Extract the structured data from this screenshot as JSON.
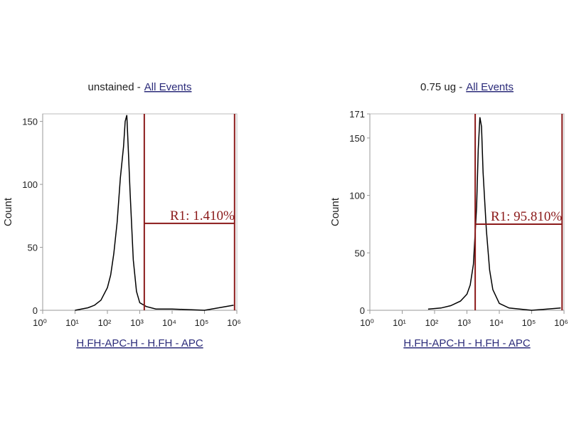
{
  "chart_data": [
    {
      "type": "line",
      "title": "unstained -",
      "title_link": "All Events",
      "xlabel": "H.FH-APC-H - H.FH - APC",
      "ylabel": "Count",
      "xscale": "log",
      "xlim": [
        1,
        1000000
      ],
      "ylim": [
        0,
        156
      ],
      "xticks": [
        {
          "value": 1,
          "label": "10⁰"
        },
        {
          "value": 10,
          "label": "10¹"
        },
        {
          "value": 100,
          "label": "10²"
        },
        {
          "value": 1000,
          "label": "10³"
        },
        {
          "value": 10000,
          "label": "10⁴"
        },
        {
          "value": 100000,
          "label": "10⁵"
        },
        {
          "value": 1000000,
          "label": "10⁶"
        }
      ],
      "yticks": [
        0,
        50,
        100,
        150
      ],
      "x": [
        10,
        25,
        40,
        63,
        100,
        126,
        158,
        200,
        251,
        316,
        355,
        398,
        447,
        501,
        631,
        794,
        1000,
        1585,
        3162,
        10000,
        100000,
        794000
      ],
      "values": [
        0,
        2,
        4,
        8,
        18,
        28,
        45,
        70,
        105,
        130,
        150,
        155,
        125,
        95,
        40,
        15,
        6,
        3,
        1,
        1,
        0,
        4
      ],
      "color": "#000000",
      "annotations": [
        {
          "text": "R1: 1.410%",
          "x": [
            1380,
            850000
          ],
          "y": 69,
          "color": "#8b1a1a"
        }
      ]
    },
    {
      "type": "line",
      "title": "0.75 ug -",
      "title_link": "All Events",
      "xlabel": "H.FH-APC-H - H.FH - APC",
      "ylabel": "Count",
      "xscale": "log",
      "xlim": [
        1,
        1000000
      ],
      "ylim": [
        0,
        171
      ],
      "xticks": [
        {
          "value": 1,
          "label": "10⁰"
        },
        {
          "value": 10,
          "label": "10¹"
        },
        {
          "value": 100,
          "label": "10²"
        },
        {
          "value": 1000,
          "label": "10³"
        },
        {
          "value": 10000,
          "label": "10⁴"
        },
        {
          "value": 100000,
          "label": "10⁵"
        },
        {
          "value": 1000000,
          "label": "10⁶"
        }
      ],
      "yticks": [
        0,
        50,
        100,
        150,
        171
      ],
      "x": [
        63,
        158,
        316,
        631,
        1000,
        1259,
        1585,
        1995,
        2239,
        2512,
        2818,
        3162,
        3981,
        5012,
        6310,
        10000,
        19953,
        100000,
        794000
      ],
      "values": [
        1,
        2,
        4,
        8,
        14,
        22,
        40,
        90,
        140,
        168,
        160,
        120,
        70,
        35,
        18,
        6,
        2,
        0,
        2
      ],
      "color": "#000000",
      "annotations": [
        {
          "text": "R1: 95.810%",
          "x": [
            1800,
            870000
          ],
          "y": 75,
          "color": "#8b1a1a"
        }
      ]
    }
  ]
}
